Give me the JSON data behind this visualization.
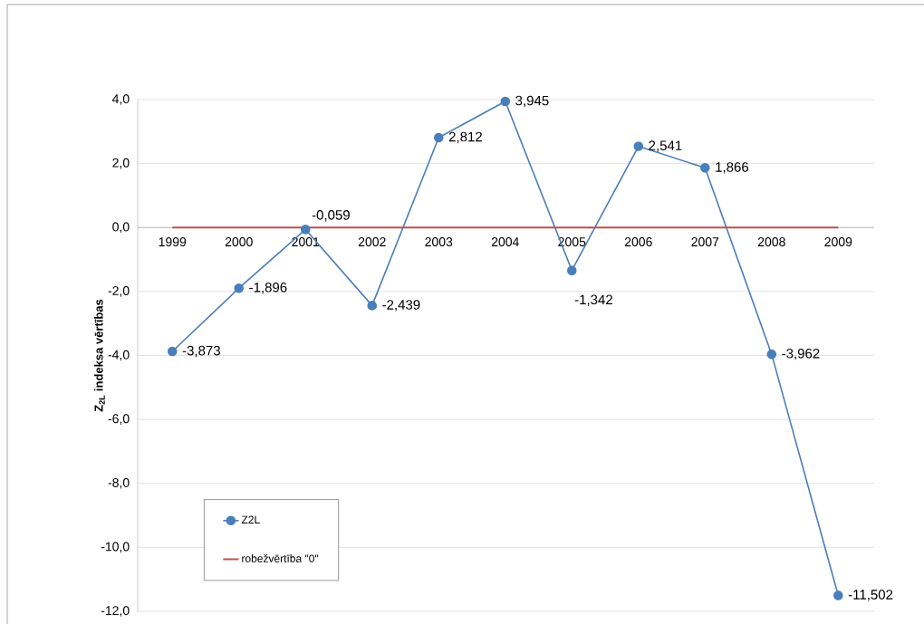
{
  "chart_data": {
    "type": "line",
    "categories": [
      "1999",
      "2000",
      "2001",
      "2002",
      "2003",
      "2004",
      "2005",
      "2006",
      "2007",
      "2008",
      "2009"
    ],
    "series": [
      {
        "name": "Z2L",
        "color": "#4a7ebb",
        "marker": "circle",
        "values": [
          -3.873,
          -1.896,
          -0.059,
          -2.439,
          2.812,
          3.945,
          -1.342,
          2.541,
          1.866,
          -3.962,
          -11.502
        ],
        "value_labels": [
          "-3,873",
          "-1,896",
          "-0,059",
          "-2,439",
          "2,812",
          "3,945",
          "-1,342",
          "2,541",
          "1,866",
          "-3,962",
          "-11,502"
        ]
      },
      {
        "name": "robežvērtība \"0\"",
        "color": "#c0504d",
        "marker": "none",
        "values": [
          0,
          0,
          0,
          0,
          0,
          0,
          0,
          0,
          0,
          0,
          0
        ]
      }
    ],
    "ylabel": "Z$_{2L}$ indeksa vērtības",
    "ylim": [
      -12,
      4
    ],
    "yticks": [
      {
        "value": -12,
        "label": "-12,0"
      },
      {
        "value": -10,
        "label": "-10,0"
      },
      {
        "value": -8,
        "label": "-8,0"
      },
      {
        "value": -6,
        "label": "-6,0"
      },
      {
        "value": -4,
        "label": "-4,0"
      },
      {
        "value": -2,
        "label": "-2,0"
      },
      {
        "value": 0,
        "label": "0,0"
      },
      {
        "value": 2,
        "label": "2,0"
      },
      {
        "value": 4,
        "label": "4,0"
      }
    ],
    "grid": "y",
    "legend": "bottom left"
  }
}
